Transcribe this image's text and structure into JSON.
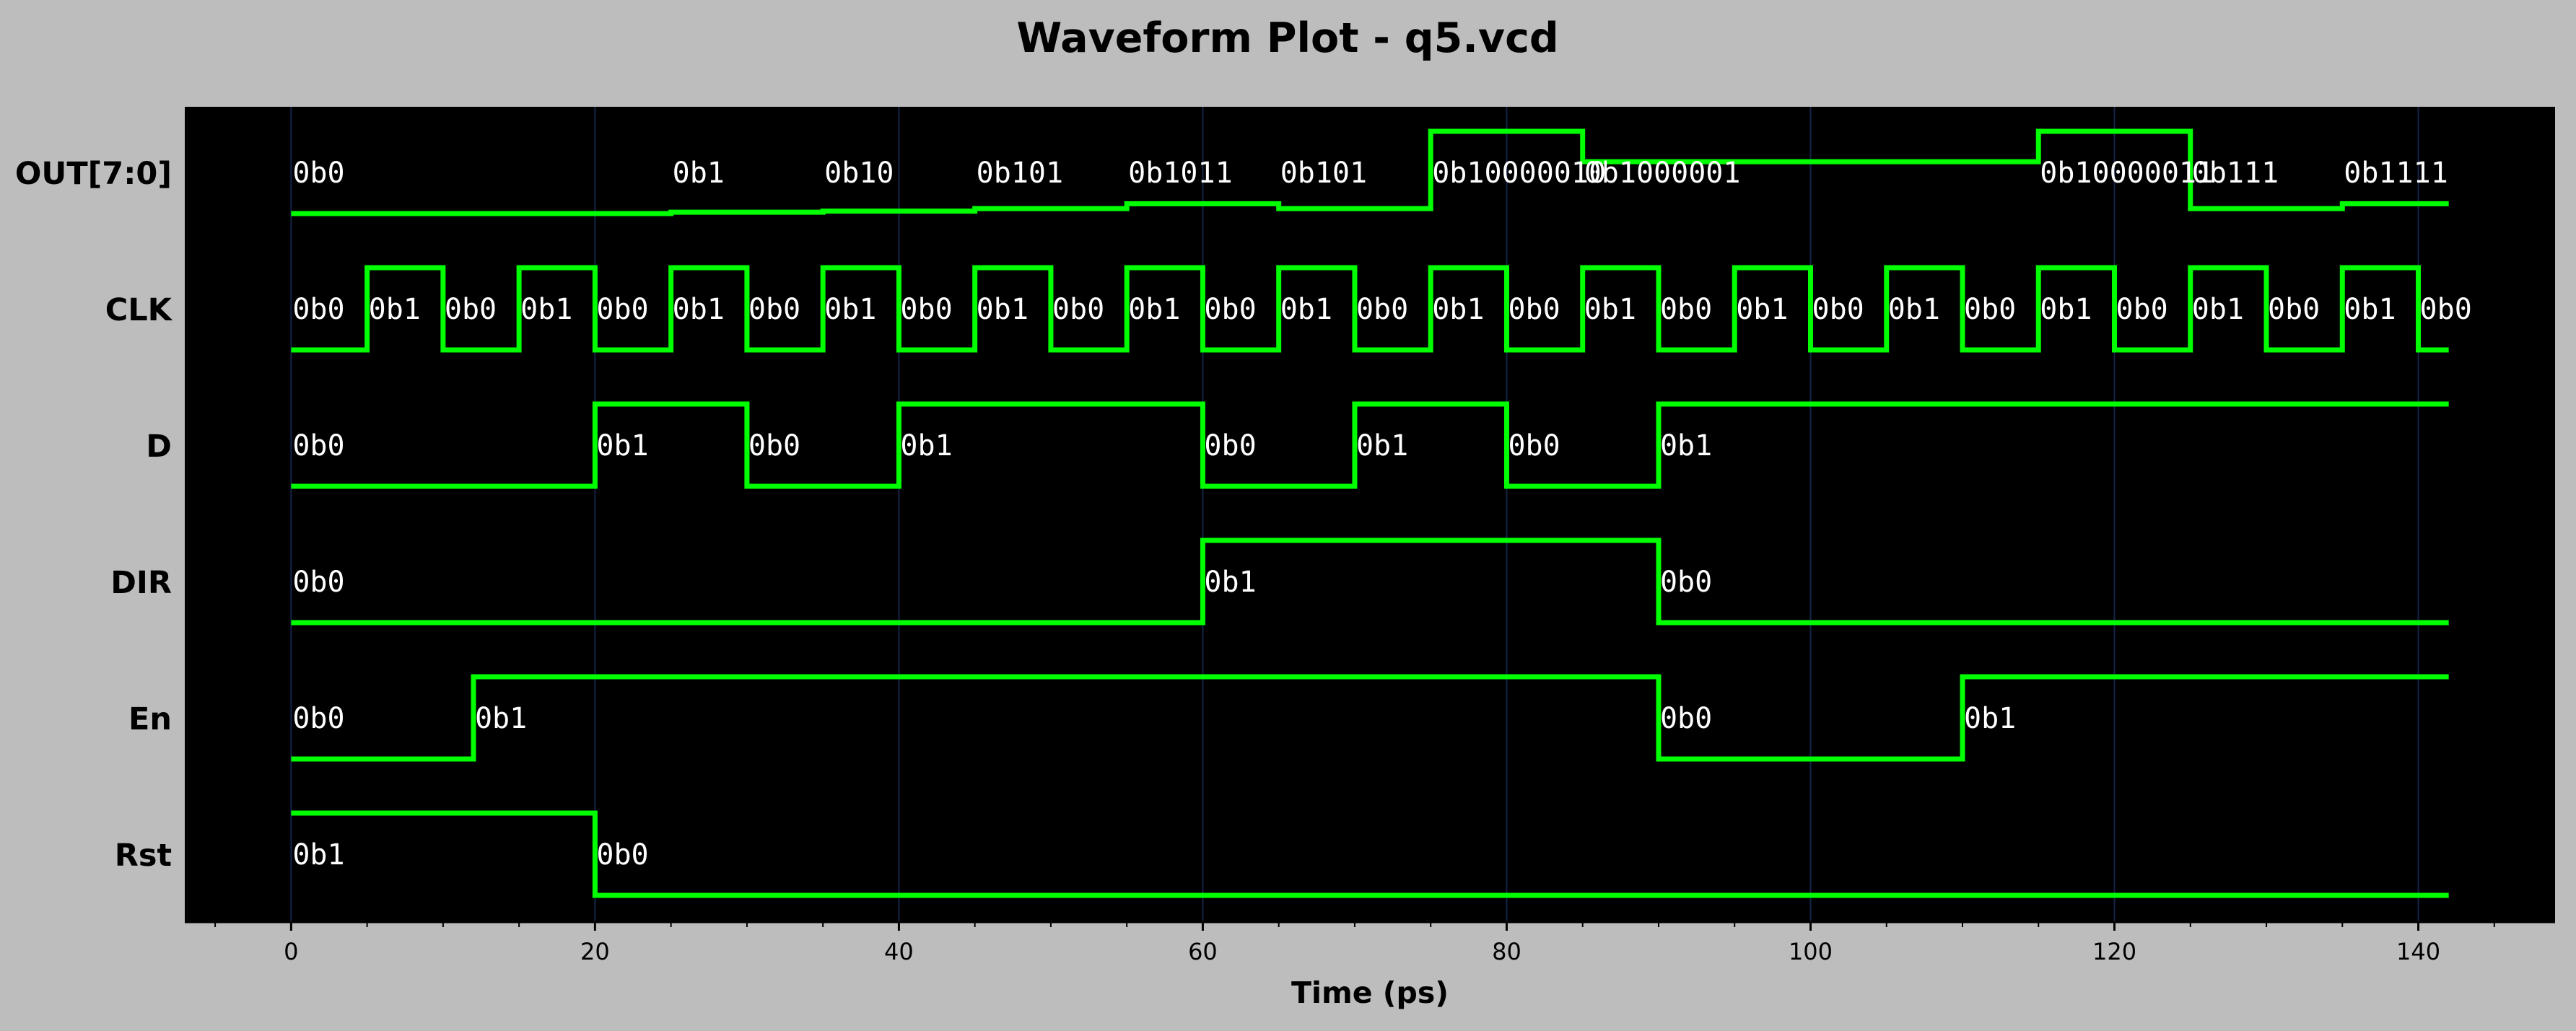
{
  "chart_data": {
    "type": "waveform",
    "title": "Waveform Plot - q5.vcd",
    "xlabel": "Time (ps)",
    "xlim": [
      -7,
      149
    ],
    "x_ticks": [
      0,
      20,
      40,
      60,
      80,
      100,
      120,
      140
    ],
    "x_minor_step": 5,
    "end_time": 142,
    "grid": true,
    "colors": {
      "page_background": "#bdbdbd",
      "plot_background": "#000000",
      "waveform": "#00ff00",
      "value_text": "#ffffff",
      "grid": "#16244a"
    },
    "signals": [
      {
        "name": "OUT[7:0]",
        "kind": "bus",
        "changes": [
          {
            "t": 0,
            "v": "0b0",
            "level": 0
          },
          {
            "t": 25,
            "v": "0b1",
            "level": 0.016
          },
          {
            "t": 35,
            "v": "0b10",
            "level": 0.03
          },
          {
            "t": 45,
            "v": "0b101",
            "level": 0.06
          },
          {
            "t": 55,
            "v": "0b1011",
            "level": 0.12
          },
          {
            "t": 65,
            "v": "0b101",
            "level": 0.06
          },
          {
            "t": 75,
            "v": "0b10000010",
            "level": 1.0
          },
          {
            "t": 85,
            "v": "0b1000001",
            "level": 0.63
          },
          {
            "t": 115,
            "v": "0b10000011",
            "level": 1.0
          },
          {
            "t": 125,
            "v": "0b111",
            "level": 0.06
          },
          {
            "t": 135,
            "v": "0b1111",
            "level": 0.12
          }
        ]
      },
      {
        "name": "CLK",
        "kind": "bit",
        "changes": [
          {
            "t": 0,
            "v": "0b0"
          },
          {
            "t": 5,
            "v": "0b1"
          },
          {
            "t": 10,
            "v": "0b0"
          },
          {
            "t": 15,
            "v": "0b1"
          },
          {
            "t": 20,
            "v": "0b0"
          },
          {
            "t": 25,
            "v": "0b1"
          },
          {
            "t": 30,
            "v": "0b0"
          },
          {
            "t": 35,
            "v": "0b1"
          },
          {
            "t": 40,
            "v": "0b0"
          },
          {
            "t": 45,
            "v": "0b1"
          },
          {
            "t": 50,
            "v": "0b0"
          },
          {
            "t": 55,
            "v": "0b1"
          },
          {
            "t": 60,
            "v": "0b0"
          },
          {
            "t": 65,
            "v": "0b1"
          },
          {
            "t": 70,
            "v": "0b0"
          },
          {
            "t": 75,
            "v": "0b1"
          },
          {
            "t": 80,
            "v": "0b0"
          },
          {
            "t": 85,
            "v": "0b1"
          },
          {
            "t": 90,
            "v": "0b0"
          },
          {
            "t": 95,
            "v": "0b1"
          },
          {
            "t": 100,
            "v": "0b0"
          },
          {
            "t": 105,
            "v": "0b1"
          },
          {
            "t": 110,
            "v": "0b0"
          },
          {
            "t": 115,
            "v": "0b1"
          },
          {
            "t": 120,
            "v": "0b0"
          },
          {
            "t": 125,
            "v": "0b1"
          },
          {
            "t": 130,
            "v": "0b0"
          },
          {
            "t": 135,
            "v": "0b1"
          },
          {
            "t": 140,
            "v": "0b0"
          }
        ]
      },
      {
        "name": "D",
        "kind": "bit",
        "changes": [
          {
            "t": 0,
            "v": "0b0"
          },
          {
            "t": 20,
            "v": "0b1"
          },
          {
            "t": 30,
            "v": "0b0"
          },
          {
            "t": 40,
            "v": "0b1"
          },
          {
            "t": 60,
            "v": "0b0"
          },
          {
            "t": 70,
            "v": "0b1"
          },
          {
            "t": 80,
            "v": "0b0"
          },
          {
            "t": 90,
            "v": "0b1"
          }
        ]
      },
      {
        "name": "DIR",
        "kind": "bit",
        "changes": [
          {
            "t": 0,
            "v": "0b0"
          },
          {
            "t": 60,
            "v": "0b1"
          },
          {
            "t": 90,
            "v": "0b0"
          }
        ]
      },
      {
        "name": "En",
        "kind": "bit",
        "changes": [
          {
            "t": 0,
            "v": "0b0"
          },
          {
            "t": 12,
            "v": "0b1"
          },
          {
            "t": 90,
            "v": "0b0"
          },
          {
            "t": 110,
            "v": "0b1"
          }
        ]
      },
      {
        "name": "Rst",
        "kind": "bit",
        "changes": [
          {
            "t": 0,
            "v": "0b1"
          },
          {
            "t": 20,
            "v": "0b0"
          }
        ]
      }
    ]
  }
}
